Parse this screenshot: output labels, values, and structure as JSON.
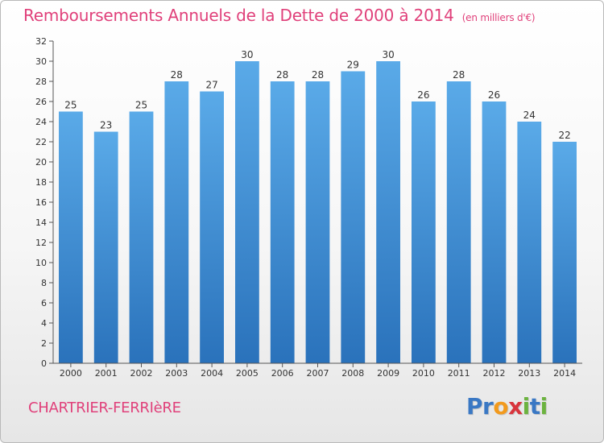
{
  "title": "Remboursements Annuels de la Dette de 2000 à 2014",
  "unit": "(en milliers d'€)",
  "footer": {
    "city": "CHARTRIER-FERRIèRE"
  },
  "logo": {
    "letters": [
      {
        "ch": "P",
        "color": "#3a78c4"
      },
      {
        "ch": "r",
        "color": "#3a78c4"
      },
      {
        "ch": "o",
        "color": "#f29a1d"
      },
      {
        "ch": "x",
        "color": "#d8343c"
      },
      {
        "ch": "i",
        "color": "#6cb33f"
      },
      {
        "ch": "t",
        "color": "#3a78c4"
      },
      {
        "ch": "i",
        "color": "#6cb33f"
      }
    ]
  },
  "chart_data": {
    "type": "bar",
    "title": "Remboursements Annuels de la Dette de 2000 à 2014",
    "categories": [
      "2000",
      "2001",
      "2002",
      "2003",
      "2004",
      "2005",
      "2006",
      "2007",
      "2008",
      "2009",
      "2010",
      "2011",
      "2012",
      "2013",
      "2014"
    ],
    "values": [
      25,
      23,
      25,
      28,
      27,
      30,
      28,
      28,
      29,
      30,
      26,
      28,
      26,
      24,
      22
    ],
    "yticks": [
      0,
      2,
      4,
      6,
      8,
      10,
      12,
      14,
      16,
      18,
      20,
      22,
      24,
      26,
      28,
      30,
      32
    ],
    "ylim": [
      0,
      32
    ],
    "grid": false,
    "colors": {
      "bar_top": "#5aaae8",
      "bar_bottom": "#2a72bb",
      "axis": "#555555",
      "label": "#333333"
    }
  }
}
